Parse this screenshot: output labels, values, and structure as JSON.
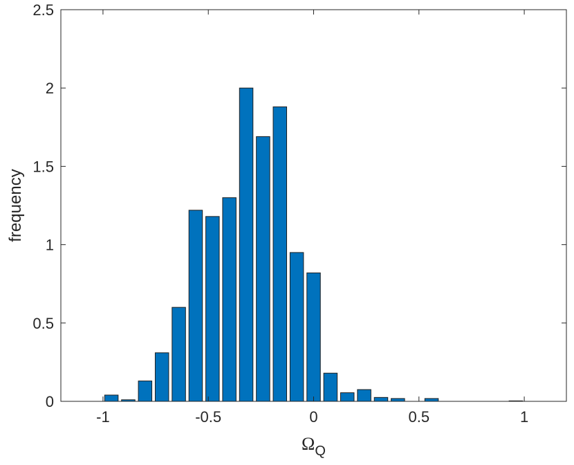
{
  "chart_data": {
    "type": "bar",
    "title": "",
    "xlabel": "Ω",
    "xlabel_subscript": "Q",
    "ylabel": "frequency",
    "xlim": [
      -1.2,
      1.2
    ],
    "ylim": [
      0,
      2.5
    ],
    "xticks": [
      -1,
      -0.5,
      0,
      0.5,
      1
    ],
    "xtick_labels": [
      "-1",
      "-0.5",
      "0",
      "0.5",
      "1"
    ],
    "yticks": [
      0,
      0.5,
      1,
      1.5,
      2,
      2.5
    ],
    "ytick_labels": [
      "0",
      "0.5",
      "1",
      "1.5",
      "2",
      "2.5"
    ],
    "grid": false,
    "bar_color": "#0072BD",
    "bar_edge_color": "#1f1f1f",
    "bin_width": 0.08,
    "bar_width": 0.064,
    "x": [
      -0.96,
      -0.88,
      -0.8,
      -0.72,
      -0.64,
      -0.56,
      -0.48,
      -0.4,
      -0.32,
      -0.24,
      -0.16,
      -0.08,
      0.0,
      0.08,
      0.16,
      0.24,
      0.32,
      0.4,
      0.48,
      0.56,
      0.64,
      0.72,
      0.8,
      0.88,
      0.96
    ],
    "values": [
      0.04,
      0.01,
      0.13,
      0.31,
      0.6,
      1.22,
      1.18,
      1.3,
      2.0,
      1.69,
      1.88,
      0.95,
      0.82,
      0.18,
      0.055,
      0.075,
      0.025,
      0.018,
      0.0,
      0.018,
      0.0,
      0.0,
      0.0,
      0.0,
      0.003
    ]
  }
}
